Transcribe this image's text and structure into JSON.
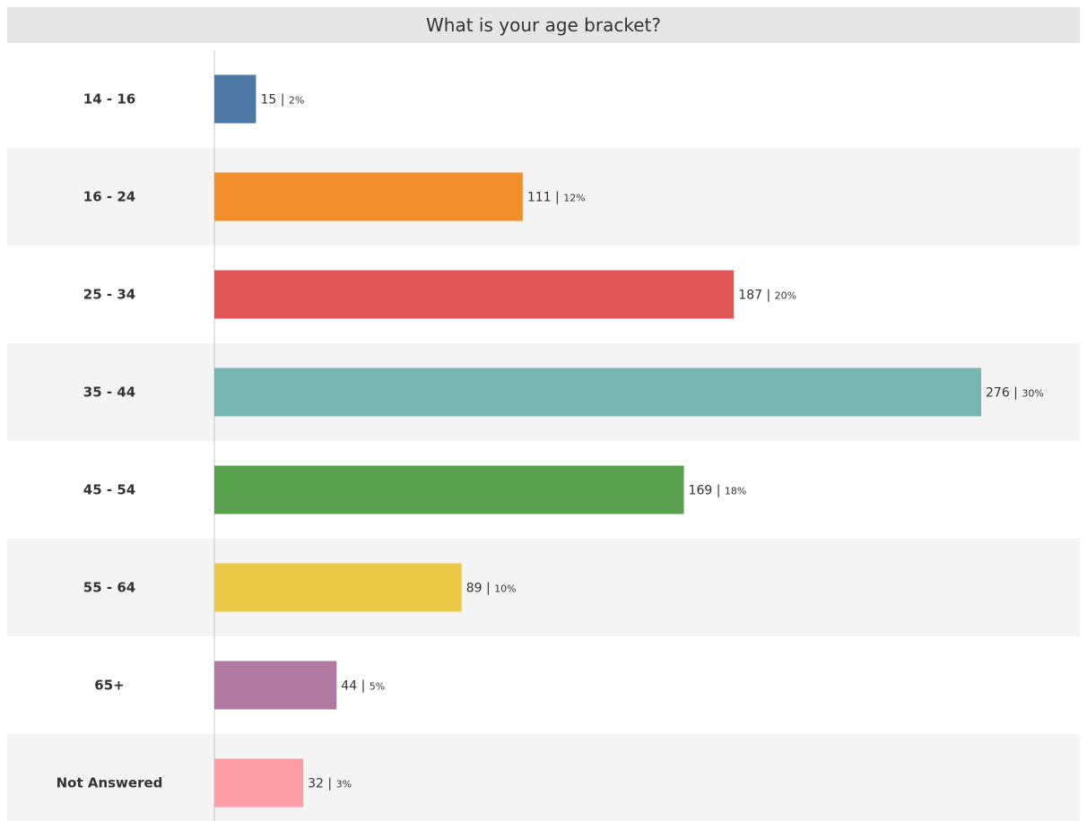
{
  "chart_data": {
    "type": "bar",
    "orientation": "horizontal",
    "title": "What is your age bracket?",
    "categories": [
      "14 - 16",
      "16 - 24",
      "25 - 34",
      "35 - 44",
      "45 - 54",
      "55 - 64",
      "65+",
      "Not Answered"
    ],
    "values": [
      15,
      111,
      187,
      276,
      169,
      89,
      44,
      32
    ],
    "percent_labels": [
      "2%",
      "12%",
      "20%",
      "30%",
      "18%",
      "10%",
      "5%",
      "3%"
    ],
    "colors": [
      "#4e79a7",
      "#f28e2b",
      "#e15759",
      "#76b7b2",
      "#59a14f",
      "#edc948",
      "#b07aa1",
      "#ff9da7"
    ],
    "band_colors": [
      "#ffffff",
      "#f4f4f4"
    ],
    "grid": false
  }
}
